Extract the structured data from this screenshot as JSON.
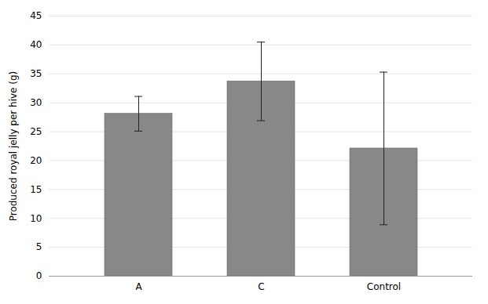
{
  "chart_data": {
    "type": "bar",
    "categories": [
      "A",
      "C",
      "Control"
    ],
    "values": [
      28.1,
      33.7,
      22.1
    ],
    "errors": [
      3.0,
      6.8,
      13.2
    ],
    "color": "#888888",
    "ylabel": "Produced royal jelly per hive (g)",
    "ylim": [
      0,
      45
    ],
    "yticks": [
      0,
      5,
      10,
      15,
      20,
      25,
      30,
      35,
      40,
      45
    ],
    "grid": true
  }
}
